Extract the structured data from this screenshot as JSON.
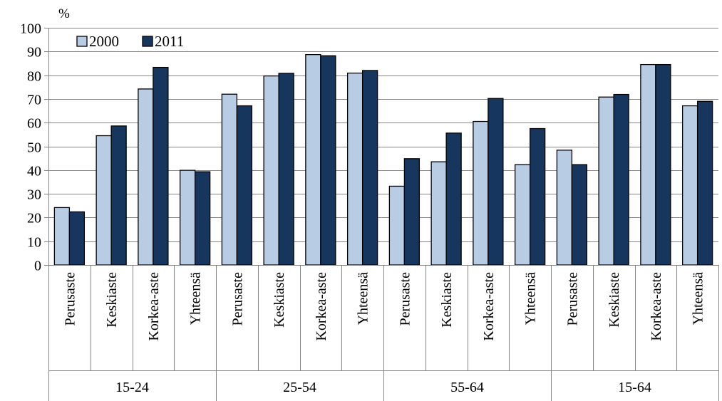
{
  "chart_data": {
    "type": "bar",
    "unit_label": "%",
    "ylim": [
      0,
      100
    ],
    "yticks": [
      0,
      10,
      20,
      30,
      40,
      50,
      60,
      70,
      80,
      90,
      100
    ],
    "grid": true,
    "legend_position": "top-left",
    "groups": [
      {
        "label": "15-24",
        "categories": [
          "Perusaste",
          "Keskiaste",
          "Korkea-aste",
          "Yhteensä"
        ]
      },
      {
        "label": "25-54",
        "categories": [
          "Perusaste",
          "Keskiaste",
          "Korkea-aste",
          "Yhteensä"
        ]
      },
      {
        "label": "55-64",
        "categories": [
          "Perusaste",
          "Keskiaste",
          "Korkea-aste",
          "Yhteensä"
        ]
      },
      {
        "label": "15-64",
        "categories": [
          "Perusaste",
          "Keskiaste",
          "Korkea-aste",
          "Yhteensä"
        ]
      }
    ],
    "series": [
      {
        "name": "2000",
        "color": "#b8cce4",
        "values": [
          24.2,
          54.5,
          74.2,
          39.9,
          72.0,
          79.7,
          88.7,
          80.9,
          33.2,
          43.5,
          60.5,
          42.3,
          48.4,
          70.8,
          84.5,
          67.1
        ]
      },
      {
        "name": "2011",
        "color": "#17365d",
        "values": [
          22.4,
          58.6,
          83.3,
          39.3,
          67.1,
          80.8,
          88.2,
          82.0,
          44.8,
          55.6,
          70.2,
          57.5,
          42.3,
          71.9,
          84.5,
          69.0
        ]
      }
    ]
  }
}
